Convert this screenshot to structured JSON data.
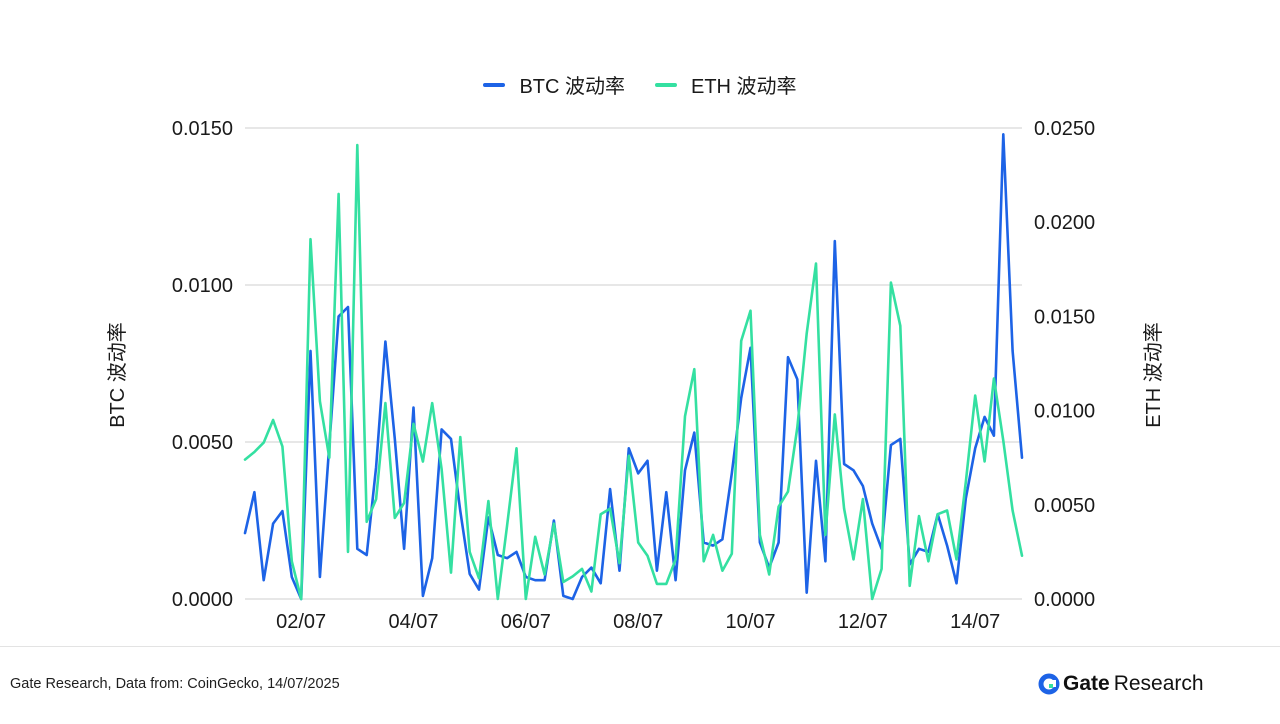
{
  "colors": {
    "btc": "#1d63e6",
    "eth": "#34e0a1",
    "grid": "#cfcfcf",
    "text": "#1a1a1a"
  },
  "legend": {
    "btc_label": "BTC 波动率",
    "eth_label": "ETH 波动率"
  },
  "footer": {
    "source": "Gate Research, Data from: CoinGecko, 14/07/2025",
    "brand_gate": "Gate",
    "brand_research": "Research"
  },
  "chart_data": {
    "type": "line",
    "title": "",
    "xlabel": "",
    "ylabel_left": "BTC 波动率",
    "ylabel_right": "ETH 波动率",
    "ylim_left": [
      0,
      0.015
    ],
    "ylim_right": [
      0,
      0.025
    ],
    "yticks_left": [
      "0.0000",
      "0.0050",
      "0.0100",
      "0.0150"
    ],
    "yticks_right": [
      "0.0000",
      "0.0050",
      "0.0100",
      "0.0150",
      "0.0200",
      "0.0250"
    ],
    "x_tick_labels": [
      "02/07",
      "04/07",
      "06/07",
      "08/07",
      "10/07",
      "12/07",
      "14/07"
    ],
    "x_tick_index": [
      6,
      18,
      30,
      42,
      54,
      66,
      78
    ],
    "grid": true,
    "legend_position": "top-center",
    "series": [
      {
        "name": "BTC 波动率",
        "axis": "left",
        "values": [
          0.0021,
          0.0034,
          0.0006,
          0.0024,
          0.0028,
          0.0007,
          0.0,
          0.0079,
          0.0007,
          0.0049,
          0.009,
          0.0093,
          0.0016,
          0.0014,
          0.0042,
          0.0082,
          0.0051,
          0.0016,
          0.0061,
          0.0001,
          0.0013,
          0.0054,
          0.0051,
          0.0028,
          0.0008,
          0.0003,
          0.0026,
          0.0014,
          0.0013,
          0.0015,
          0.0007,
          0.0006,
          0.0006,
          0.0025,
          0.0001,
          0.0,
          0.0007,
          0.001,
          0.0005,
          0.0035,
          0.0009,
          0.0048,
          0.004,
          0.0044,
          0.0009,
          0.0034,
          0.0006,
          0.0041,
          0.0053,
          0.0018,
          0.0017,
          0.0019,
          0.004,
          0.0064,
          0.008,
          0.0018,
          0.001,
          0.0018,
          0.0077,
          0.007,
          0.0002,
          0.0044,
          0.0012,
          0.0114,
          0.0043,
          0.0041,
          0.0036,
          0.0024,
          0.0016,
          0.0049,
          0.0051,
          0.0011,
          0.0016,
          0.0015,
          0.0027,
          0.0017,
          0.0005,
          0.0032,
          0.0048,
          0.0058,
          0.0052,
          0.0148,
          0.0079,
          0.0045
        ]
      },
      {
        "name": "ETH 波动率",
        "axis": "right",
        "values": [
          0.0074,
          0.0078,
          0.0083,
          0.0095,
          0.0081,
          0.002,
          0.0,
          0.0191,
          0.0105,
          0.0075,
          0.0215,
          0.0025,
          0.0241,
          0.0041,
          0.0053,
          0.0104,
          0.0043,
          0.0051,
          0.0093,
          0.0073,
          0.0104,
          0.0069,
          0.0014,
          0.0086,
          0.0025,
          0.0011,
          0.0052,
          0.0,
          0.0039,
          0.008,
          0.0,
          0.0033,
          0.0013,
          0.004,
          0.0009,
          0.0012,
          0.0016,
          0.0004,
          0.0045,
          0.0048,
          0.0019,
          0.0076,
          0.003,
          0.0023,
          0.0008,
          0.0008,
          0.0021,
          0.0097,
          0.0122,
          0.002,
          0.0034,
          0.0015,
          0.0024,
          0.0137,
          0.0153,
          0.0034,
          0.0013,
          0.0049,
          0.0057,
          0.0091,
          0.0141,
          0.0178,
          0.0034,
          0.0098,
          0.0048,
          0.0021,
          0.0053,
          0.0,
          0.0016,
          0.0168,
          0.0145,
          0.0007,
          0.0044,
          0.002,
          0.0045,
          0.0047,
          0.0021,
          0.0062,
          0.0108,
          0.0073,
          0.0117,
          0.0084,
          0.0047,
          0.0023
        ]
      }
    ]
  }
}
